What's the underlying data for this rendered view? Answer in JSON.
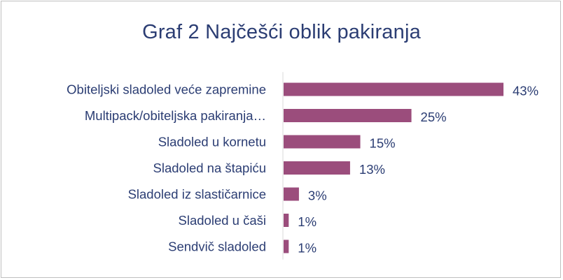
{
  "chart_data": {
    "type": "bar",
    "orientation": "horizontal",
    "title": "Graf 2 Najčešći oblik pakiranja",
    "categories": [
      "Obiteljski sladoled veće zapremine",
      "Multipack/obiteljska pakiranja…",
      "Sladoled u kornetu",
      "Sladoled na štapiću",
      "Sladoled iz slastičarnice",
      "Sladoled u čaši",
      "Sendvič sladoled"
    ],
    "values": [
      43,
      25,
      15,
      13,
      3,
      1,
      1
    ],
    "value_labels": [
      "43%",
      "25%",
      "15%",
      "13%",
      "3%",
      "1%",
      "1%"
    ],
    "xlim": [
      0,
      43
    ],
    "grid": false,
    "legend": "none",
    "colors": {
      "bar": "#9b4d7c",
      "text": "#2b3d73",
      "axis": "#d9d9d9"
    }
  }
}
